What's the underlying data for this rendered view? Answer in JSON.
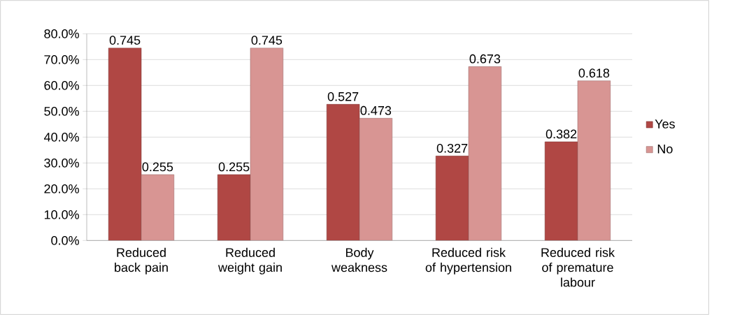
{
  "chart_data": {
    "type": "bar",
    "categories": [
      "Reduced back pain",
      "Reduced weight gain",
      "Body weakness",
      "Reduced risk of hypertension",
      "Reduced risk of premature labour"
    ],
    "series": [
      {
        "name": "Yes",
        "color": "#b04744",
        "values": [
          0.745,
          0.255,
          0.527,
          0.327,
          0.382
        ]
      },
      {
        "name": "No",
        "color": "#d89593",
        "values": [
          0.255,
          0.745,
          0.473,
          0.673,
          0.618
        ]
      }
    ],
    "ylim": [
      0,
      0.8
    ],
    "yticks": [
      {
        "value": 0,
        "label": "0.0%"
      },
      {
        "value": 0.1,
        "label": "10.0%"
      },
      {
        "value": 0.2,
        "label": "20.0%"
      },
      {
        "value": 0.3,
        "label": "30.0%"
      },
      {
        "value": 0.4,
        "label": "40.0%"
      },
      {
        "value": 0.5,
        "label": "50.0%"
      },
      {
        "value": 0.6,
        "label": "60.0%"
      },
      {
        "value": 0.7,
        "label": "70.0%"
      },
      {
        "value": 0.8,
        "label": "80.0%"
      }
    ],
    "grid": "y",
    "legend": "right",
    "data_labels": true
  }
}
